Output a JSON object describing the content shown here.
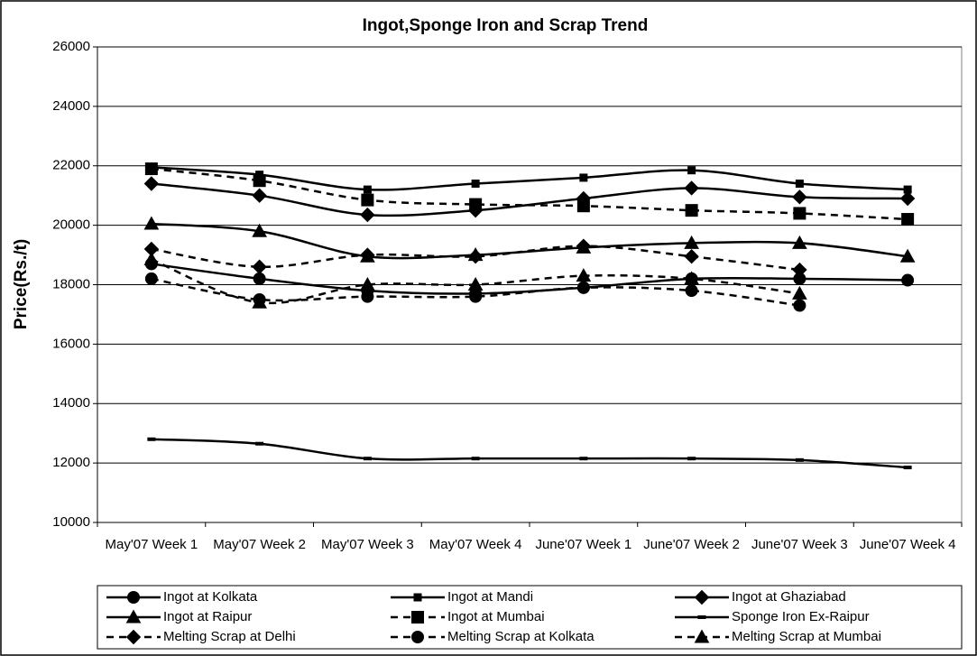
{
  "chart_data": {
    "type": "line",
    "title": "Ingot,Sponge Iron and Scrap Trend",
    "y_label": "Price(Rs./t)",
    "categories": [
      "May'07 Week 1",
      "May'07 Week 2",
      "May'07 Week 3",
      "May'07 Week 4",
      "June'07 Week 1",
      "June'07 Week 2",
      "June'07 Week 3",
      "June'07 Week 4"
    ],
    "ylim": [
      10000,
      26000
    ],
    "yticks": [
      10000,
      12000,
      14000,
      16000,
      18000,
      20000,
      22000,
      24000,
      26000
    ],
    "grid": true,
    "legend": "bottom",
    "series": [
      {
        "name": "Ingot at Kolkata",
        "color": "#000000",
        "style": "solid",
        "marker": "circle",
        "values": [
          18700,
          18200,
          17800,
          17700,
          17900,
          18200,
          18200,
          18150
        ]
      },
      {
        "name": "Ingot at Mandi",
        "color": "#000000",
        "style": "solid",
        "marker": "small-square",
        "values": [
          21950,
          21700,
          21200,
          21400,
          21600,
          21850,
          21400,
          21200
        ]
      },
      {
        "name": "Ingot at Ghaziabad",
        "color": "#000000",
        "style": "solid",
        "marker": "diamond",
        "values": [
          21400,
          21000,
          20350,
          20500,
          20900,
          21250,
          20950,
          20900
        ]
      },
      {
        "name": "Ingot at Raipur",
        "color": "#000000",
        "style": "solid",
        "marker": "triangle",
        "values": [
          20050,
          19800,
          18950,
          19000,
          19250,
          19400,
          19400,
          18950
        ]
      },
      {
        "name": "Ingot at Mumbai",
        "color": "#000000",
        "style": "dashed",
        "marker": "square",
        "values": [
          21900,
          21500,
          20850,
          20700,
          20650,
          20500,
          20400,
          20200
        ]
      },
      {
        "name": "Sponge Iron Ex-Raipur",
        "color": "#000000",
        "style": "solid",
        "marker": "dash",
        "values": [
          12800,
          12650,
          12150,
          12150,
          12150,
          12150,
          12100,
          11850
        ]
      },
      {
        "name": "Melting Scrap at Delhi",
        "color": "#000000",
        "style": "dashed",
        "marker": "diamond",
        "values": [
          19200,
          18600,
          19000,
          18950,
          19300,
          18950,
          18500,
          null
        ]
      },
      {
        "name": "Melting Scrap at Kolkata",
        "color": "#000000",
        "style": "dashed",
        "marker": "circle",
        "values": [
          18200,
          17500,
          17600,
          17600,
          17900,
          17800,
          17300,
          null
        ]
      },
      {
        "name": "Melting Scrap at Mumbai",
        "color": "#000000",
        "style": "dashed",
        "marker": "triangle",
        "values": [
          18850,
          17400,
          18000,
          18000,
          18300,
          18200,
          17700,
          null
        ]
      }
    ]
  }
}
